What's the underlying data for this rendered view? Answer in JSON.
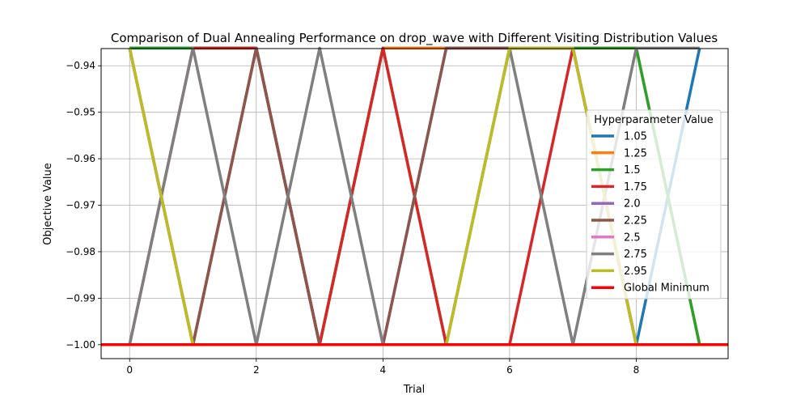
{
  "chart_data": {
    "type": "line",
    "title": "Comparison of Dual Annealing Performance on drop_wave with Different Visiting Distribution Values",
    "xlabel": "Trial",
    "ylabel": "Objective Value",
    "xlim": [
      -0.45,
      9.45
    ],
    "ylim": [
      -1.003,
      -0.9363
    ],
    "xticks": [
      0,
      2,
      4,
      6,
      8
    ],
    "yticks": [
      -0.94,
      -0.95,
      -0.96,
      -0.97,
      -0.98,
      -0.99,
      -1.0
    ],
    "xtick_labels": [
      "0",
      "2",
      "4",
      "6",
      "8"
    ],
    "ytick_labels": [
      "−0.94",
      "−0.95",
      "−0.96",
      "−0.97",
      "−0.98",
      "−0.99",
      "−1.00"
    ],
    "grid": true,
    "legend_title": "Hyperparameter Value",
    "legend_position": "center-right",
    "x": [
      0,
      1,
      2,
      3,
      4,
      5,
      6,
      7,
      8,
      9
    ],
    "series": [
      {
        "name": "1.05",
        "color": "#1f77b4",
        "values": [
          -0.9362,
          -0.9362,
          -0.9362,
          -1.0,
          -0.9362,
          -0.9362,
          -0.9362,
          -0.9362,
          -1.0,
          -0.9362
        ]
      },
      {
        "name": "1.25",
        "color": "#ff7f0e",
        "values": [
          -0.9362,
          -1.0,
          -0.9362,
          -1.0,
          -0.9362,
          -0.9362,
          -0.9362,
          -0.9362,
          -0.9362,
          -1.0
        ]
      },
      {
        "name": "1.5",
        "color": "#2ca02c",
        "values": [
          -0.9362,
          -0.9362,
          -0.9362,
          -1.0,
          -0.9362,
          -1.0,
          -0.9362,
          -0.9362,
          -0.9362,
          -1.0
        ]
      },
      {
        "name": "1.75",
        "color": "#d62728",
        "values": [
          -1.0,
          -0.9362,
          -0.9362,
          -1.0,
          -0.9362,
          -1.0,
          -1.0,
          -0.9362,
          -1.0,
          -1.0
        ]
      },
      {
        "name": "2.0",
        "color": "#9467bd",
        "values": [
          -0.9362,
          -1.0,
          -0.9362,
          -1.0,
          -1.0,
          -0.9362,
          -0.9362,
          -0.9362,
          -1.0,
          -1.0
        ]
      },
      {
        "name": "2.25",
        "color": "#8c564b",
        "values": [
          -0.9362,
          -1.0,
          -0.9362,
          -1.0,
          -1.0,
          -0.9362,
          -0.9362,
          -0.9362,
          -1.0,
          -1.0
        ]
      },
      {
        "name": "2.5",
        "color": "#e377c2",
        "values": [
          -0.9362,
          -1.0,
          -1.0,
          -1.0,
          -1.0,
          -1.0,
          -0.9362,
          -0.9362,
          -1.0,
          -1.0
        ]
      },
      {
        "name": "2.75",
        "color": "#7f7f7f",
        "values": [
          -1.0,
          -0.9362,
          -1.0,
          -0.9362,
          -1.0,
          -1.0,
          -0.9362,
          -1.0,
          -0.9362,
          -0.9362
        ]
      },
      {
        "name": "2.95",
        "color": "#bcbd22",
        "values": [
          -0.9362,
          -1.0,
          -1.0,
          -1.0,
          -1.0,
          -1.0,
          -0.9362,
          -0.9362,
          -1.0,
          -1.0
        ]
      }
    ],
    "hlines": [
      {
        "name": "Global Minimum",
        "color": "#ff0000",
        "value": -1.0
      }
    ]
  }
}
